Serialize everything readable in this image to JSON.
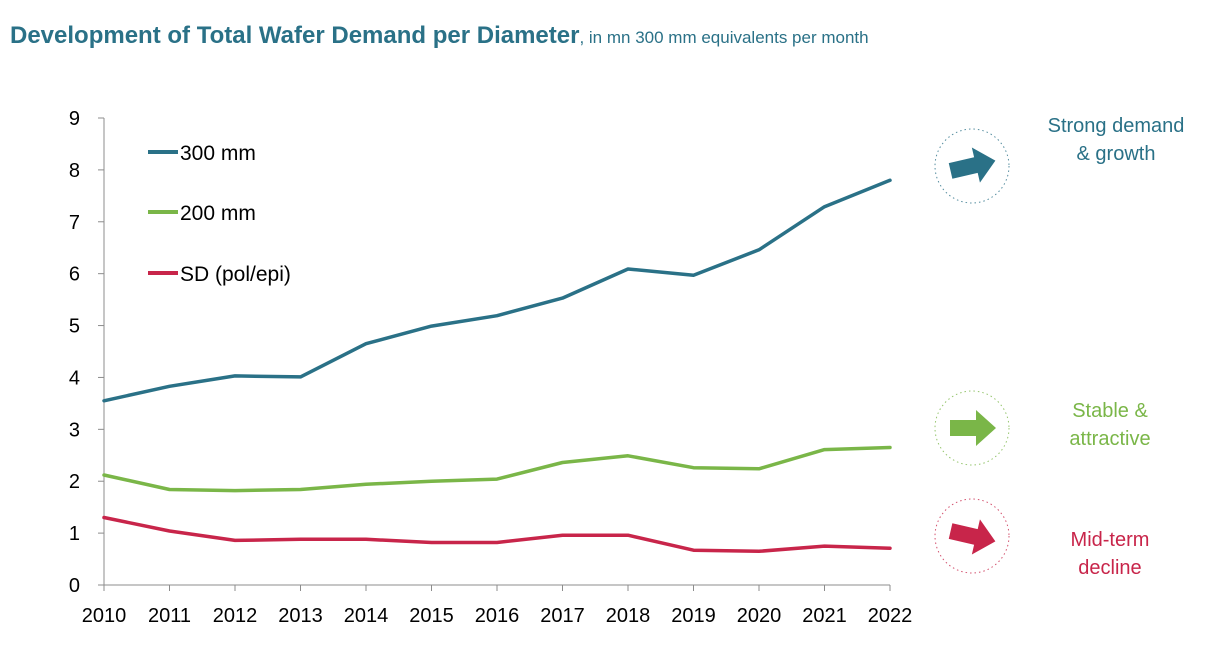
{
  "title": {
    "main": "Development of Total Wafer Demand per Diameter",
    "sub": ", in mn 300 mm equivalents per month"
  },
  "chart_data": {
    "type": "line",
    "x": [
      2010,
      2011,
      2012,
      2013,
      2014,
      2015,
      2016,
      2017,
      2018,
      2019,
      2020,
      2021,
      2022
    ],
    "ylim": [
      0,
      9
    ],
    "yticks": [
      0,
      1,
      2,
      3,
      4,
      5,
      6,
      7,
      8,
      9
    ],
    "grid": false,
    "legend": "top-left",
    "series": [
      {
        "name": "300 mm",
        "color": "#2a7187",
        "values": [
          3.55,
          3.83,
          4.03,
          4.01,
          4.65,
          4.99,
          5.19,
          5.53,
          6.09,
          5.97,
          6.46,
          7.29,
          7.8
        ]
      },
      {
        "name": "200 mm",
        "color": "#7ab648",
        "values": [
          2.12,
          1.84,
          1.82,
          1.84,
          1.94,
          2.0,
          2.04,
          2.36,
          2.49,
          2.26,
          2.24,
          2.61,
          2.65
        ]
      },
      {
        "name": "SD (pol/epi)",
        "color": "#c8254a",
        "values": [
          1.3,
          1.04,
          0.86,
          0.88,
          0.88,
          0.82,
          0.82,
          0.96,
          0.96,
          0.67,
          0.65,
          0.75,
          0.71
        ]
      }
    ]
  },
  "outlook": [
    {
      "label_line1": "Strong demand",
      "label_line2": "& growth",
      "color": "#2a7187",
      "icon": "arrow-right-icon"
    },
    {
      "label_line1": "Stable &",
      "label_line2": "attractive",
      "color": "#7ab648",
      "icon": "arrow-right-icon"
    },
    {
      "label_line1": "Mid-term",
      "label_line2": "decline",
      "color": "#c8254a",
      "icon": "arrow-right-icon"
    }
  ]
}
